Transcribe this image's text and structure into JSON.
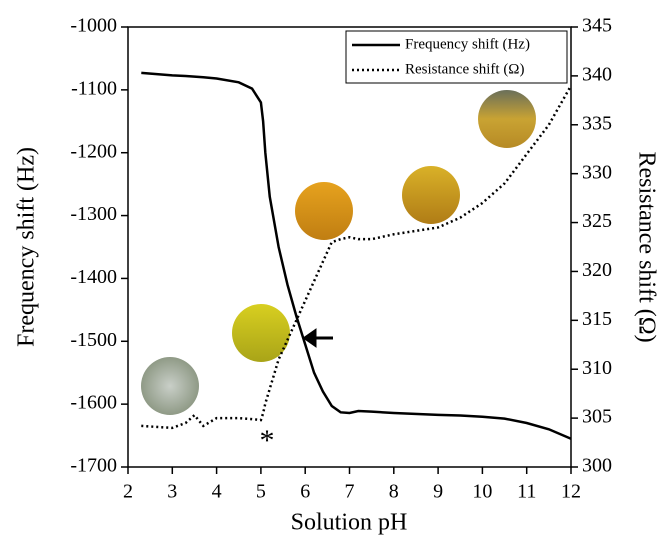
{
  "chart_data": {
    "type": "line",
    "x_label": "Solution pH",
    "y_label": "Frequency shift (Hz)",
    "y2_label": "Resistance shift (Ω)",
    "x": [
      2.3,
      3,
      3.3,
      3.5,
      3.7,
      4,
      4.5,
      4.8,
      5,
      5.05,
      5.1,
      5.2,
      5.4,
      5.6,
      5.8,
      6,
      6.2,
      6.4,
      6.6,
      6.8,
      7,
      7.2,
      7.5,
      8,
      9,
      9.5,
      10,
      10.5,
      11,
      11.5,
      12
    ],
    "series": [
      {
        "name": "Frequency shift (Hz)",
        "color": "#000000",
        "style": "solid",
        "values": [
          -1073,
          -1077,
          -1078,
          -1079,
          -1080,
          -1082,
          -1088,
          -1098,
          -1120,
          -1150,
          -1200,
          -1270,
          -1350,
          -1410,
          -1460,
          -1505,
          -1550,
          -1580,
          -1603,
          -1613,
          -1614,
          -1611,
          -1612,
          -1614,
          -1617,
          -1618,
          -1620,
          -1623,
          -1630,
          -1640,
          -1655
        ]
      },
      {
        "name": "Resistance shift (Ω)",
        "color": "#000000",
        "style": "dotted",
        "axis": "y2",
        "values": [
          304.2,
          304,
          304.5,
          305.3,
          304.2,
          305,
          305,
          304.9,
          304.8,
          305.5,
          306.5,
          308,
          311,
          313,
          315,
          317,
          319,
          321,
          323,
          323.3,
          323.5,
          323.3,
          323.3,
          323.8,
          324.5,
          325.5,
          327,
          329,
          332,
          335,
          339
        ]
      }
    ],
    "xlim": [
      2,
      12
    ],
    "xticks": [
      2,
      3,
      4,
      5,
      6,
      7,
      8,
      9,
      10,
      11,
      12
    ],
    "ylim": [
      -1700,
      -1000
    ],
    "yticks": [
      -1700,
      -1600,
      -1500,
      -1400,
      -1300,
      -1200,
      -1100,
      -1000
    ],
    "y2lim": [
      300,
      345
    ],
    "y2ticks": [
      300,
      305,
      310,
      315,
      320,
      325,
      330,
      335,
      340,
      345
    ],
    "annotations": [
      "*"
    ],
    "legend": "top-right"
  }
}
